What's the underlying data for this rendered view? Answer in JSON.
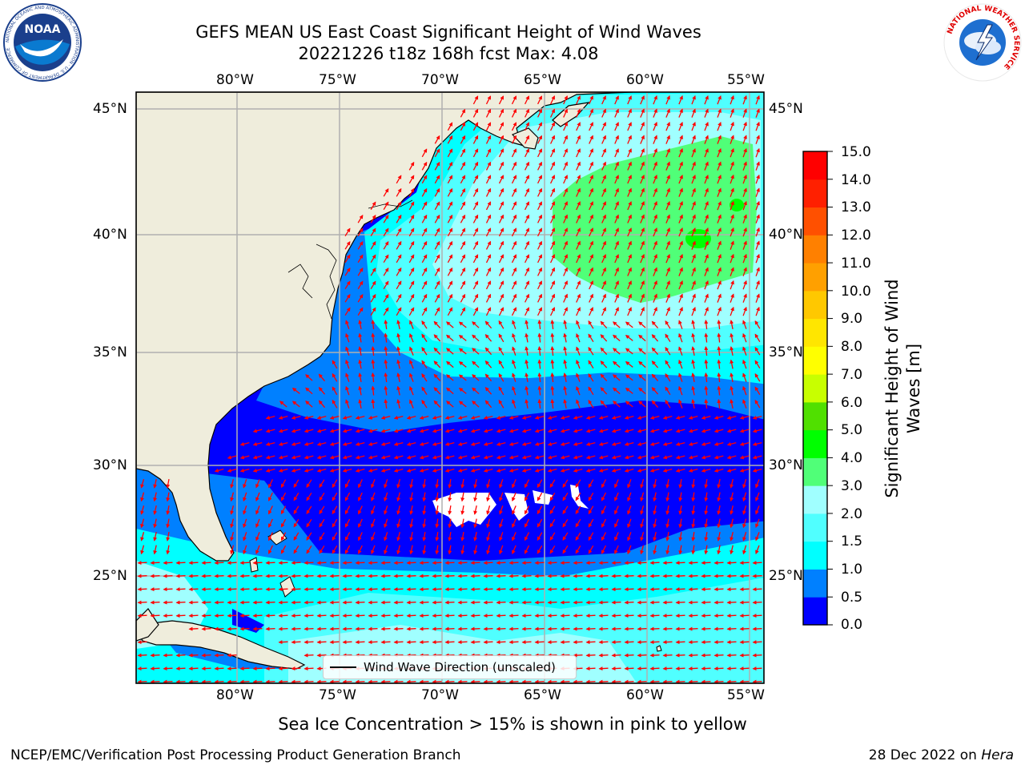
{
  "title_line1": "GEFS MEAN US East Coast Significant Height of Wind Waves",
  "title_line2": "20221226 t18z 168h fcst   Max: 4.08",
  "longitude_labels": [
    "80°W",
    "75°W",
    "70°W",
    "65°W",
    "60°W",
    "55°W"
  ],
  "latitude_labels": [
    "45°N",
    "40°N",
    "35°N",
    "30°N",
    "25°N"
  ],
  "colorbar": {
    "label": "Significant Height of Wind Waves [m]",
    "ticks": [
      "15.0",
      "14.0",
      "13.0",
      "12.0",
      "11.0",
      "10.0",
      "9.0",
      "8.0",
      "7.0",
      "6.0",
      "5.0",
      "4.0",
      "3.0",
      "2.0",
      "1.5",
      "1.0",
      "0.5",
      "0.0"
    ],
    "colors_bottom_to_top": [
      "#0000ff",
      "#0080ff",
      "#00ffff",
      "#50ffff",
      "#a0ffff",
      "#50ff78",
      "#00ff00",
      "#50e000",
      "#c8ff00",
      "#ffff00",
      "#ffe600",
      "#ffc800",
      "#ffa000",
      "#ff8000",
      "#ff5000",
      "#ff2000",
      "#ff0000"
    ]
  },
  "legend_label": "Wind Wave Direction (unscaled)",
  "colors": {
    "land": "#efeddc",
    "arrow": "#ff0000",
    "grid": "#b0b0b0",
    "no_data": "#ffffff"
  },
  "ice_note": "Sea Ice Concentration > 15% is shown in pink to yellow",
  "credit_left": "NCEP/EMC/Verification Post Processing Product Generation Branch",
  "credit_date": "28 Dec 2022 on",
  "credit_machine": "Hera",
  "logos": {
    "noaa_text": "NOAA",
    "noaa_ring": "NATIONAL OCEANIC AND ATMOSPHERIC ADMINISTRATION · U.S. DEPARTMENT OF COMMERCE",
    "nws_ring": "NATIONAL WEATHER SERVICE"
  }
}
